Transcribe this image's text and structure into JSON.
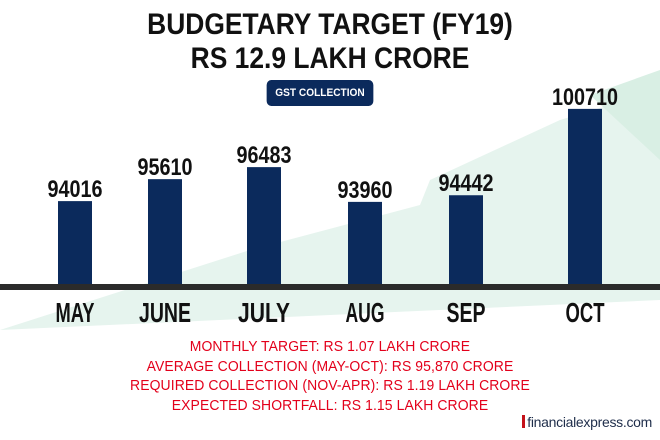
{
  "header": {
    "title_line1": "BUDGETARY TARGET (FY19)",
    "title_line2": "RS 12.9 LAKH CRORE",
    "badge": "GST COLLECTION"
  },
  "chart_data": {
    "type": "bar",
    "title": "GST COLLECTION",
    "categories": [
      "MAY",
      "JUNE",
      "JULY",
      "AUG",
      "SEP",
      "OCT"
    ],
    "values": [
      94016,
      95610,
      96483,
      93960,
      94442,
      100710
    ],
    "data_labels": [
      "94016",
      "95610",
      "96483",
      "93960",
      "94442",
      "100710"
    ],
    "ylim": [
      88000,
      101500
    ],
    "bar_color": "#0b2a5c",
    "baseline_color": "#2b2b2b",
    "grid": false
  },
  "notes": [
    "MONTHLY TARGET: RS 1.07 LAKH CRORE",
    "AVERAGE COLLECTION (MAY-OCT): RS 95,870 CRORE",
    "REQUIRED COLLECTION (NOV-APR): RS 1.19 LAKH CRORE",
    "EXPECTED SHORTFALL: RS 1.15 LAKH CRORE"
  ],
  "source": "financialexpress.com",
  "colors": {
    "note_text": "#e3001b",
    "badge_bg": "#0b2a5c",
    "bar": "#0b2a5c",
    "background_arrow": "#e6f4ee"
  }
}
